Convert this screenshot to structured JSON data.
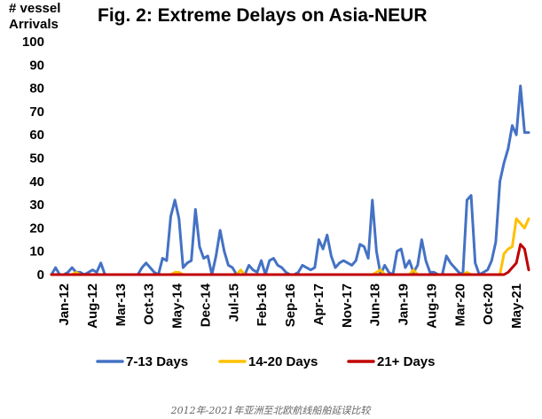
{
  "chart_data": {
    "type": "line",
    "title": "Fig. 2: Extreme Delays on Asia-NEUR",
    "ylabel_lines": [
      "# vessel",
      "Arrivals"
    ],
    "xlabel": "",
    "ylim": [
      0,
      100
    ],
    "yticks": [
      0,
      10,
      20,
      30,
      40,
      50,
      60,
      70,
      80,
      90,
      100
    ],
    "grid": false,
    "legend_position": "bottom",
    "x_range": [
      "Jan-12",
      "May-21"
    ],
    "x_tick_labels": [
      "Jan-12",
      "Aug-12",
      "Mar-13",
      "Oct-13",
      "May-14",
      "Dec-14",
      "Jul-15",
      "Feb-16",
      "Sep-16",
      "Apr-17",
      "Nov-17",
      "Jun-18",
      "Jan-19",
      "Aug-19",
      "Mar-20",
      "Oct-20",
      "May-21"
    ],
    "series": [
      {
        "name": "7-13 Days",
        "color": "#4472C4",
        "values": [
          0,
          3,
          0,
          0,
          1,
          3,
          1,
          1,
          0,
          1,
          2,
          1,
          5,
          0,
          0,
          0,
          0,
          0,
          0,
          0,
          0,
          0,
          3,
          5,
          3,
          1,
          0,
          7,
          6,
          25,
          32,
          24,
          3,
          5,
          6,
          28,
          12,
          7,
          8,
          0,
          8,
          19,
          10,
          4,
          3,
          0,
          0,
          0,
          4,
          2,
          1,
          6,
          0,
          6,
          7,
          4,
          3,
          1,
          0,
          0,
          1,
          4,
          3,
          2,
          3,
          15,
          11,
          17,
          8,
          3,
          5,
          6,
          5,
          4,
          6,
          13,
          12,
          7,
          32,
          10,
          0,
          4,
          1,
          0,
          10,
          11,
          3,
          6,
          1,
          4,
          15,
          6,
          1,
          1,
          0,
          0,
          8,
          5,
          3,
          1,
          0,
          32,
          34,
          5,
          0,
          1,
          2,
          6,
          14,
          40,
          48,
          54,
          64,
          60,
          81,
          61,
          61
        ]
      },
      {
        "name": "14-20 Days",
        "color": "#FFC000",
        "values": [
          0,
          0,
          0,
          0,
          0,
          0,
          1,
          0,
          0,
          0,
          0,
          0,
          0,
          0,
          0,
          0,
          0,
          0,
          0,
          0,
          0,
          0,
          0,
          0,
          0,
          0,
          0,
          0,
          0,
          0,
          1,
          1,
          0,
          0,
          0,
          0,
          0,
          0,
          0,
          0,
          0,
          0,
          0,
          0,
          0,
          0,
          2,
          0,
          0,
          0,
          0,
          0,
          0,
          0,
          0,
          0,
          0,
          0,
          0,
          0,
          0,
          0,
          0,
          0,
          0,
          0,
          0,
          0,
          0,
          0,
          0,
          0,
          0,
          0,
          0,
          0,
          0,
          0,
          0,
          1,
          2,
          0,
          0,
          0,
          0,
          0,
          0,
          0,
          2,
          0,
          0,
          0,
          0,
          0,
          0,
          0,
          0,
          0,
          0,
          0,
          0,
          1,
          0,
          0,
          0,
          0,
          0,
          0,
          0,
          0,
          9,
          11,
          12,
          24,
          22,
          20,
          24
        ]
      },
      {
        "name": "21+ Days",
        "color": "#C00000",
        "values": [
          0,
          0,
          0,
          0,
          0,
          0,
          0,
          0,
          0,
          0,
          0,
          0,
          0,
          0,
          0,
          0,
          0,
          0,
          0,
          0,
          0,
          0,
          0,
          0,
          0,
          0,
          0,
          0,
          0,
          0,
          0,
          0,
          0,
          0,
          0,
          0,
          0,
          0,
          0,
          0,
          0,
          0,
          0,
          0,
          0,
          0,
          0,
          0,
          0,
          0,
          0,
          0,
          0,
          0,
          0,
          0,
          0,
          0,
          0,
          0,
          0,
          0,
          0,
          0,
          0,
          0,
          0,
          0,
          0,
          0,
          0,
          0,
          0,
          0,
          0,
          0,
          0,
          0,
          0,
          0,
          0,
          0,
          0,
          0,
          0,
          0,
          0,
          0,
          0,
          0,
          0,
          0,
          0,
          0,
          0,
          0,
          0,
          0,
          0,
          0,
          0,
          0,
          0,
          0,
          0,
          0,
          0,
          0,
          0,
          0,
          0,
          1,
          3,
          5,
          13,
          11,
          2
        ]
      }
    ]
  },
  "caption": "2012年-2021年亚洲至北欧航线船舶延误比较"
}
